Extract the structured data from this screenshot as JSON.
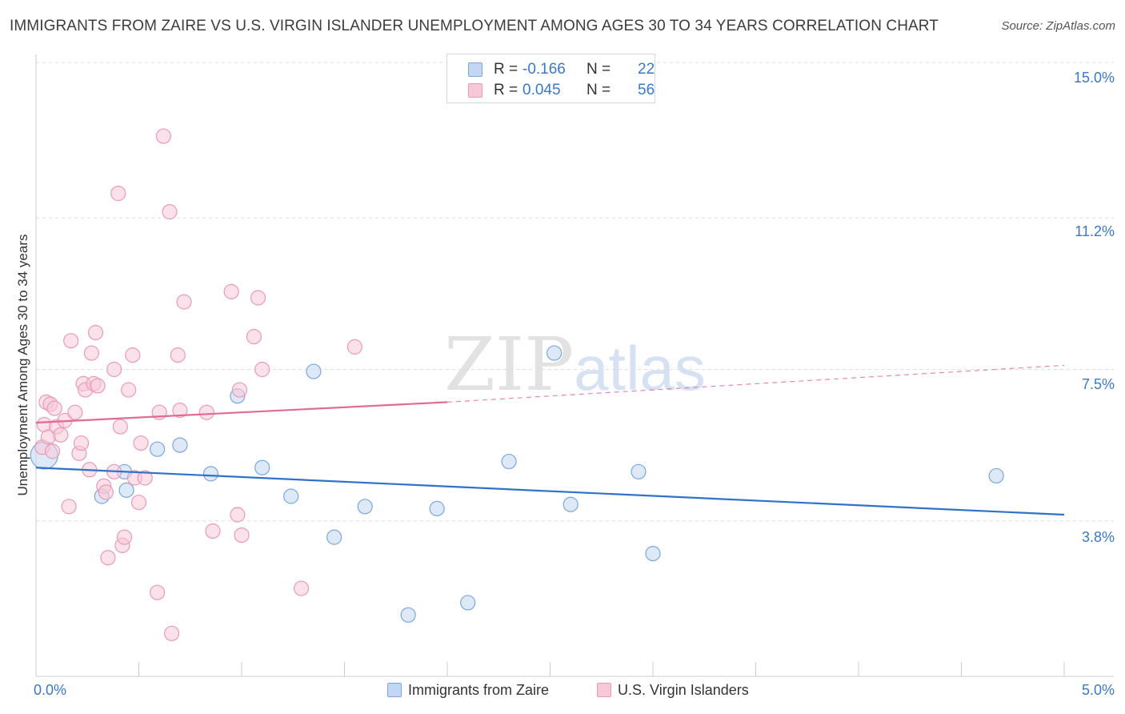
{
  "chart_data": {
    "type": "scatter",
    "title": "IMMIGRANTS FROM ZAIRE VS U.S. VIRGIN ISLANDER UNEMPLOYMENT AMONG AGES 30 TO 34 YEARS CORRELATION CHART",
    "source": "Source: ZipAtlas.com",
    "xlabel": "",
    "ylabel": "Unemployment Among Ages 30 to 34 years",
    "xlim": [
      0,
      5.0
    ],
    "ylim": [
      0,
      15.0
    ],
    "x_tick_labels": [
      "0.0%",
      "5.0%"
    ],
    "y_ticks": [
      3.8,
      7.5,
      11.2,
      15.0
    ],
    "y_tick_labels": [
      "3.8%",
      "7.5%",
      "11.2%",
      "15.0%"
    ],
    "grid": true,
    "watermark": {
      "zip": "ZIP",
      "atlas": "atlas"
    },
    "legend_top": {
      "rows": [
        {
          "r_label": "R =",
          "r_value": "-0.166",
          "n_label": "N =",
          "n_value": "22"
        },
        {
          "r_label": "R =",
          "r_value": "0.045",
          "n_label": "N =",
          "n_value": "56"
        }
      ]
    },
    "series": [
      {
        "name": "Immigrants from Zaire",
        "color": "#7aa7e0",
        "fill": "#c3d7f3",
        "trend_color": "#2f72c9",
        "trend": {
          "x0": 0.0,
          "y0": 5.1,
          "x1": 5.0,
          "y1": 3.95
        },
        "points": [
          [
            0.04,
            5.4
          ],
          [
            0.32,
            4.4
          ],
          [
            0.43,
            5.0
          ],
          [
            0.44,
            4.55
          ],
          [
            0.59,
            5.55
          ],
          [
            0.7,
            5.65
          ],
          [
            0.85,
            4.95
          ],
          [
            0.98,
            6.85
          ],
          [
            1.1,
            5.1
          ],
          [
            1.24,
            4.4
          ],
          [
            1.35,
            7.45
          ],
          [
            1.45,
            3.4
          ],
          [
            1.6,
            4.15
          ],
          [
            1.81,
            1.5
          ],
          [
            1.95,
            4.1
          ],
          [
            2.1,
            1.8
          ],
          [
            2.3,
            5.25
          ],
          [
            2.52,
            7.9
          ],
          [
            2.6,
            4.2
          ],
          [
            2.93,
            5.0
          ],
          [
            3.0,
            3.0
          ],
          [
            4.67,
            4.9
          ]
        ],
        "sizes": [
          34,
          0,
          0,
          0,
          0,
          0,
          0,
          0,
          0,
          0,
          0,
          0,
          0,
          0,
          0,
          0,
          0,
          0,
          0,
          0,
          0,
          0
        ]
      },
      {
        "name": "U.S. Virgin Islanders",
        "color": "#eb9ab5",
        "fill": "#f7c8d7",
        "trend_color": "#e06b93",
        "trend": {
          "x0": 0.0,
          "y0": 6.2,
          "x1": 2.0,
          "y1": 6.7
        },
        "trend_dashed": {
          "x0": 2.0,
          "y0": 6.7,
          "x1": 5.0,
          "y1": 7.6
        },
        "points": [
          [
            0.03,
            5.6
          ],
          [
            0.04,
            6.15
          ],
          [
            0.05,
            6.7
          ],
          [
            0.06,
            5.85
          ],
          [
            0.07,
            6.65
          ],
          [
            0.08,
            5.5
          ],
          [
            0.09,
            6.55
          ],
          [
            0.1,
            6.1
          ],
          [
            0.12,
            5.9
          ],
          [
            0.14,
            6.25
          ],
          [
            0.16,
            4.15
          ],
          [
            0.17,
            8.2
          ],
          [
            0.19,
            6.45
          ],
          [
            0.21,
            5.45
          ],
          [
            0.22,
            5.7
          ],
          [
            0.23,
            7.15
          ],
          [
            0.24,
            7.0
          ],
          [
            0.26,
            5.05
          ],
          [
            0.27,
            7.9
          ],
          [
            0.28,
            7.15
          ],
          [
            0.29,
            8.4
          ],
          [
            0.3,
            7.1
          ],
          [
            0.33,
            4.65
          ],
          [
            0.34,
            4.5
          ],
          [
            0.35,
            2.9
          ],
          [
            0.38,
            7.5
          ],
          [
            0.38,
            5.0
          ],
          [
            0.4,
            11.8
          ],
          [
            0.41,
            6.1
          ],
          [
            0.42,
            3.2
          ],
          [
            0.43,
            3.4
          ],
          [
            0.45,
            7.0
          ],
          [
            0.47,
            7.85
          ],
          [
            0.48,
            4.85
          ],
          [
            0.5,
            4.25
          ],
          [
            0.51,
            5.7
          ],
          [
            0.53,
            4.85
          ],
          [
            0.59,
            2.05
          ],
          [
            0.6,
            6.45
          ],
          [
            0.62,
            13.2
          ],
          [
            0.65,
            11.35
          ],
          [
            0.66,
            1.05
          ],
          [
            0.69,
            7.85
          ],
          [
            0.7,
            6.5
          ],
          [
            0.72,
            9.15
          ],
          [
            0.83,
            6.45
          ],
          [
            0.86,
            3.55
          ],
          [
            0.95,
            9.4
          ],
          [
            0.98,
            3.95
          ],
          [
            0.99,
            7.0
          ],
          [
            1.0,
            3.45
          ],
          [
            1.06,
            8.3
          ],
          [
            1.08,
            9.25
          ],
          [
            1.1,
            7.5
          ],
          [
            1.29,
            2.15
          ],
          [
            1.55,
            8.05
          ]
        ]
      }
    ]
  }
}
